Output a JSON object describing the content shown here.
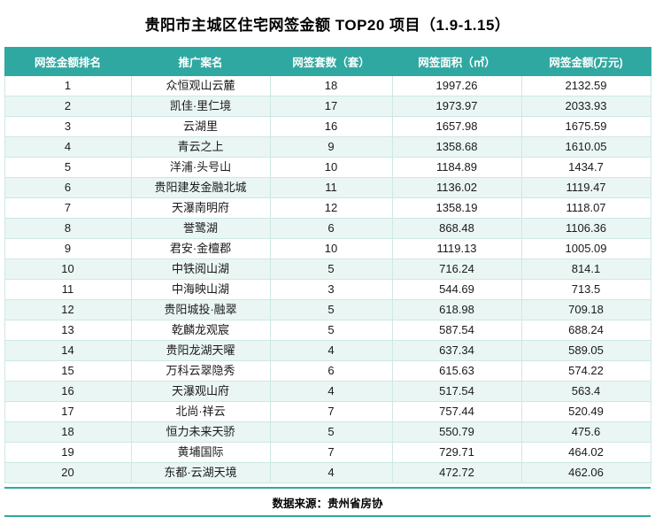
{
  "colors": {
    "accent": "#2FA8A1",
    "row_alt": "#EAF6F4",
    "grid": "#CDE8E5"
  },
  "chart_data": {
    "type": "table",
    "title": "贵阳市主城区住宅网签金额 TOP20 项目（1.9-1.15）",
    "columns": [
      "网签金额排名",
      "推广案名",
      "网签套数（套）",
      "网签面积（㎡）",
      "网签金额(万元)"
    ],
    "rows": [
      [
        "1",
        "众恒观山云麓",
        "18",
        "1997.26",
        "2132.59"
      ],
      [
        "2",
        "凯佳·里仁境",
        "17",
        "1973.97",
        "2033.93"
      ],
      [
        "3",
        "云湖里",
        "16",
        "1657.98",
        "1675.59"
      ],
      [
        "4",
        "青云之上",
        "9",
        "1358.68",
        "1610.05"
      ],
      [
        "5",
        "洋浦·头号山",
        "10",
        "1184.89",
        "1434.7"
      ],
      [
        "6",
        "贵阳建发金融北城",
        "11",
        "1136.02",
        "1119.47"
      ],
      [
        "7",
        "天瀑南明府",
        "12",
        "1358.19",
        "1118.07"
      ],
      [
        "8",
        "誉鹭湖",
        "6",
        "868.48",
        "1106.36"
      ],
      [
        "9",
        "君安·金檀郡",
        "10",
        "1119.13",
        "1005.09"
      ],
      [
        "10",
        "中铁阅山湖",
        "5",
        "716.24",
        "814.1"
      ],
      [
        "11",
        "中海映山湖",
        "3",
        "544.69",
        "713.5"
      ],
      [
        "12",
        "贵阳城投·融翠",
        "5",
        "618.98",
        "709.18"
      ],
      [
        "13",
        "乾麟龙观宸",
        "5",
        "587.54",
        "688.24"
      ],
      [
        "14",
        "贵阳龙湖天曜",
        "4",
        "637.34",
        "589.05"
      ],
      [
        "15",
        "万科云翠隐秀",
        "6",
        "615.63",
        "574.22"
      ],
      [
        "16",
        "天瀑观山府",
        "4",
        "517.54",
        "563.4"
      ],
      [
        "17",
        "北尚·祥云",
        "7",
        "757.44",
        "520.49"
      ],
      [
        "18",
        "恒力未来天骄",
        "5",
        "550.79",
        "475.6"
      ],
      [
        "19",
        "黄埔国际",
        "7",
        "729.71",
        "464.02"
      ],
      [
        "20",
        "东都·云湖天境",
        "4",
        "472.72",
        "462.06"
      ]
    ],
    "source_note": "数据来源：贵州省房协"
  }
}
